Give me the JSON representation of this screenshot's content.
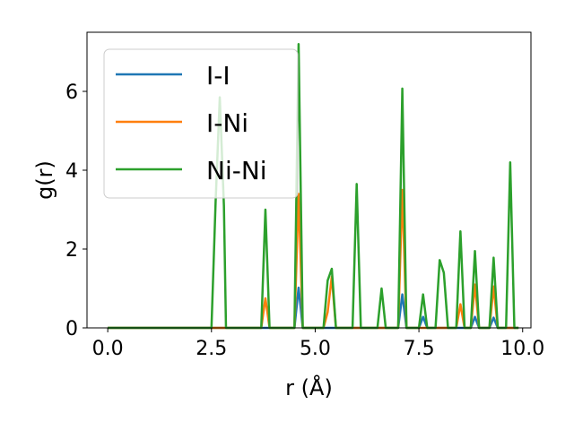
{
  "chart_data": {
    "type": "line",
    "title": "",
    "xlabel": "r (Å)",
    "ylabel": "g(r)",
    "xlim": [
      -0.5,
      10.2
    ],
    "ylim": [
      0,
      7.5
    ],
    "xticks": [
      0.0,
      2.5,
      5.0,
      7.5,
      10.0
    ],
    "xtick_labels": [
      "0.0",
      "2.5",
      "5.0",
      "7.5",
      "10.0"
    ],
    "yticks": [
      0,
      2,
      4,
      6
    ],
    "ytick_labels": [
      "0",
      "2",
      "4",
      "6"
    ],
    "legend_position": "top-left",
    "grid": false,
    "series": [
      {
        "name": "I-I",
        "color": "#1f77b4",
        "x": [
          0,
          2.45,
          2.5,
          2.6,
          2.7,
          2.8,
          2.85,
          3.7,
          3.8,
          3.9,
          4.5,
          4.6,
          4.7,
          5.0,
          5.35,
          5.45,
          6.5,
          6.6,
          6.7,
          7.0,
          7.1,
          7.2,
          7.5,
          7.6,
          7.7,
          8.4,
          8.5,
          8.6,
          8.75,
          8.85,
          8.95,
          9.2,
          9.3,
          9.4,
          9.9
        ],
        "y": [
          0,
          0,
          0,
          0,
          0,
          0,
          0,
          0,
          0,
          0,
          0,
          1.02,
          0,
          0,
          0,
          0,
          0,
          0,
          0,
          0,
          0.85,
          0,
          0,
          0.28,
          0,
          0,
          0,
          0,
          0,
          0.28,
          0,
          0,
          0.26,
          0,
          0
        ]
      },
      {
        "name": "I-Ni",
        "color": "#ff7f0e",
        "x": [
          0,
          3.7,
          3.8,
          3.9,
          4.5,
          4.6,
          4.7,
          5.2,
          5.3,
          5.4,
          5.5,
          7.0,
          7.1,
          7.2,
          8.4,
          8.5,
          8.6,
          8.75,
          8.85,
          8.95,
          9.2,
          9.3,
          9.4,
          9.9
        ],
        "y": [
          0,
          0,
          0.75,
          0,
          0,
          3.4,
          0,
          0,
          0.4,
          1.3,
          0,
          0,
          3.5,
          0,
          0,
          0.6,
          0,
          0,
          1.1,
          0,
          0,
          1.05,
          0,
          0
        ]
      },
      {
        "name": "Ni-Ni",
        "color": "#2ca02c",
        "x": [
          0,
          2.5,
          2.6,
          2.7,
          2.8,
          2.85,
          3.7,
          3.8,
          3.9,
          4.5,
          4.6,
          4.7,
          5.2,
          5.3,
          5.4,
          5.5,
          5.9,
          6.0,
          6.1,
          6.5,
          6.6,
          6.7,
          7.0,
          7.1,
          7.2,
          7.5,
          7.6,
          7.7,
          7.9,
          8.0,
          8.1,
          8.2,
          8.4,
          8.5,
          8.6,
          8.75,
          8.85,
          8.95,
          9.2,
          9.3,
          9.4,
          9.6,
          9.7,
          9.8,
          9.9
        ],
        "y": [
          0,
          0,
          3.2,
          5.85,
          3.1,
          0,
          0,
          3.0,
          0,
          0,
          7.2,
          0,
          0,
          1.2,
          1.5,
          0,
          0,
          3.65,
          0,
          0,
          1.0,
          0,
          0,
          6.07,
          0,
          0,
          0.85,
          0,
          0,
          1.72,
          1.4,
          0,
          0,
          2.45,
          0,
          0,
          1.95,
          0,
          0,
          1.78,
          0,
          0,
          4.2,
          0,
          0
        ]
      }
    ]
  }
}
